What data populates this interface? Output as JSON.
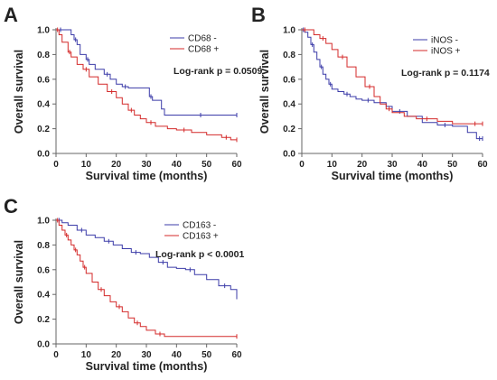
{
  "chart_data": [
    {
      "panel": "A",
      "type": "line",
      "xlabel": "Survival time (months)",
      "ylabel": "Overall survival",
      "xlim": [
        0,
        60
      ],
      "ylim": [
        0,
        1
      ],
      "xticks": [
        "0",
        "10",
        "20",
        "30",
        "40",
        "50",
        "60"
      ],
      "yticks": [
        "0.0",
        "0.2",
        "0.4",
        "0.6",
        "0.8",
        "1.0"
      ],
      "annotation": "Log-rank p = 0.0509",
      "legend_position": "top-right",
      "series": [
        {
          "name": "CD68 -",
          "color": "#3b3ba8",
          "x": [
            0,
            3,
            5,
            6,
            7,
            8,
            10,
            11,
            13,
            16,
            18,
            20,
            22,
            24,
            26,
            31,
            32,
            35,
            36,
            60
          ],
          "y": [
            1.0,
            1.0,
            0.96,
            0.92,
            0.88,
            0.8,
            0.76,
            0.72,
            0.68,
            0.64,
            0.6,
            0.56,
            0.54,
            0.53,
            0.53,
            0.46,
            0.43,
            0.36,
            0.31,
            0.31
          ]
        },
        {
          "name": "CD68 +",
          "color": "#d42a2a",
          "x": [
            0,
            1,
            2,
            4,
            5,
            7,
            9,
            11,
            14,
            17,
            20,
            22,
            24,
            26,
            28,
            30,
            33,
            37,
            40,
            45,
            50,
            55,
            58,
            60
          ],
          "y": [
            1.0,
            0.96,
            0.9,
            0.82,
            0.78,
            0.72,
            0.68,
            0.62,
            0.56,
            0.5,
            0.45,
            0.4,
            0.35,
            0.31,
            0.28,
            0.25,
            0.22,
            0.2,
            0.19,
            0.17,
            0.15,
            0.13,
            0.11,
            0.11
          ]
        }
      ]
    },
    {
      "panel": "B",
      "type": "line",
      "xlabel": "Survival time (months)",
      "ylabel": "Overall survival",
      "xlim": [
        0,
        60
      ],
      "ylim": [
        0,
        1
      ],
      "xticks": [
        "0",
        "10",
        "20",
        "30",
        "40",
        "50",
        "60"
      ],
      "yticks": [
        "0.0",
        "0.2",
        "0.4",
        "0.6",
        "0.8",
        "1.0"
      ],
      "annotation": "Log-rank p = 0.1174",
      "legend_position": "top-right",
      "series": [
        {
          "name": "iNOS -",
          "color": "#3b3ba8",
          "x": [
            0,
            1,
            2,
            3,
            4,
            5,
            6,
            7,
            8,
            9,
            10,
            12,
            14,
            16,
            18,
            20,
            24,
            28,
            30,
            35,
            40,
            45,
            50,
            55,
            58,
            60
          ],
          "y": [
            1.0,
            0.98,
            0.94,
            0.88,
            0.82,
            0.76,
            0.7,
            0.64,
            0.6,
            0.56,
            0.52,
            0.5,
            0.48,
            0.46,
            0.44,
            0.43,
            0.41,
            0.38,
            0.34,
            0.3,
            0.25,
            0.23,
            0.22,
            0.17,
            0.12,
            0.12
          ]
        },
        {
          "name": "iNOS +",
          "color": "#d42a2a",
          "x": [
            0,
            2,
            4,
            6,
            8,
            10,
            12,
            15,
            18,
            21,
            24,
            26,
            28,
            30,
            34,
            38,
            45,
            50,
            55,
            60
          ],
          "y": [
            1.0,
            1.0,
            0.96,
            0.93,
            0.89,
            0.84,
            0.78,
            0.7,
            0.62,
            0.54,
            0.46,
            0.4,
            0.36,
            0.33,
            0.3,
            0.28,
            0.26,
            0.24,
            0.24,
            0.24
          ]
        }
      ]
    },
    {
      "panel": "C",
      "type": "line",
      "xlabel": "Survival time (months)",
      "ylabel": "Overall survival",
      "xlim": [
        0,
        60
      ],
      "ylim": [
        0,
        1
      ],
      "xticks": [
        "0",
        "10",
        "20",
        "30",
        "40",
        "50",
        "60"
      ],
      "yticks": [
        "0.0",
        "0.2",
        "0.4",
        "0.6",
        "0.8",
        "1.0"
      ],
      "annotation": "Log-rank p < 0.0001",
      "legend_position": "top-right",
      "series": [
        {
          "name": "CD163 -",
          "color": "#3b3ba8",
          "x": [
            0,
            2,
            4,
            7,
            10,
            13,
            16,
            19,
            22,
            25,
            28,
            31,
            34,
            37,
            40,
            43,
            46,
            50,
            54,
            58,
            60
          ],
          "y": [
            1.0,
            0.98,
            0.96,
            0.92,
            0.88,
            0.86,
            0.83,
            0.8,
            0.77,
            0.74,
            0.73,
            0.7,
            0.66,
            0.62,
            0.61,
            0.6,
            0.56,
            0.52,
            0.47,
            0.44,
            0.38
          ]
        },
        {
          "name": "CD163 +",
          "color": "#d42a2a",
          "x": [
            0,
            1,
            2,
            3,
            4,
            5,
            6,
            7,
            8,
            9,
            10,
            12,
            14,
            16,
            18,
            20,
            22,
            24,
            26,
            28,
            30,
            33,
            36,
            60
          ],
          "y": [
            1.0,
            0.96,
            0.92,
            0.88,
            0.84,
            0.8,
            0.76,
            0.72,
            0.67,
            0.62,
            0.57,
            0.5,
            0.44,
            0.39,
            0.34,
            0.3,
            0.26,
            0.21,
            0.17,
            0.14,
            0.11,
            0.08,
            0.06,
            0.06
          ]
        }
      ]
    }
  ]
}
